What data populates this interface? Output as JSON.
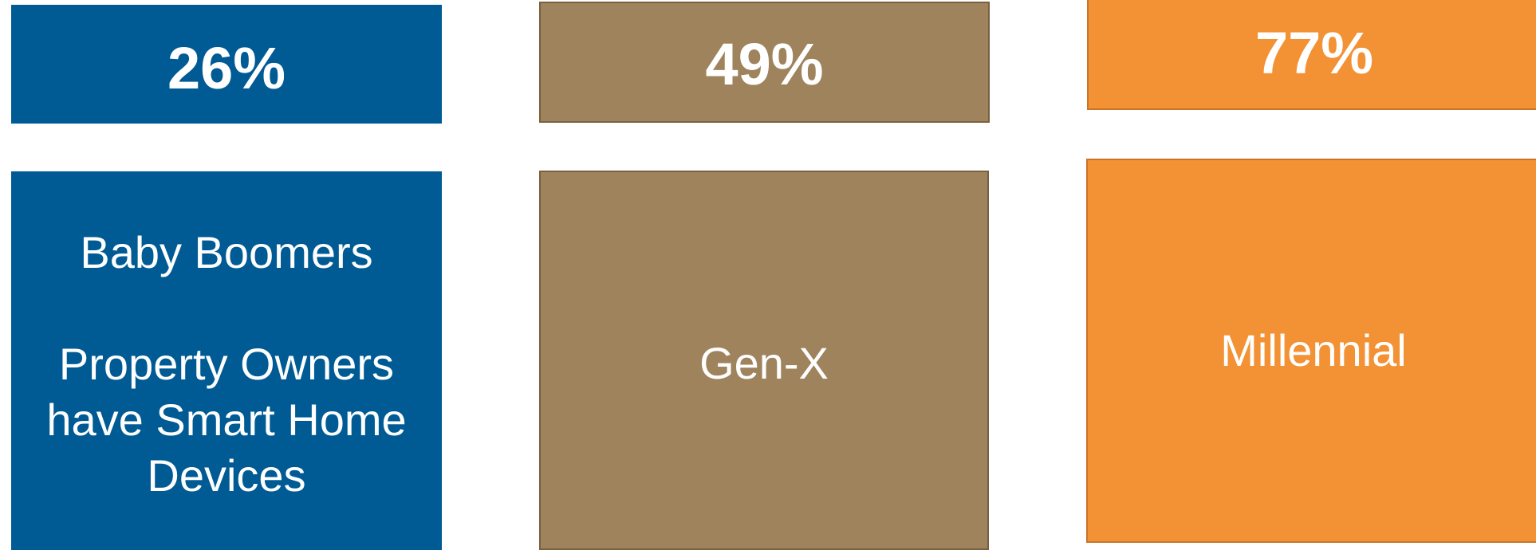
{
  "colors": {
    "boomers": "#005a94",
    "genx": "#9e835d",
    "millennial": "#f39234"
  },
  "groups": [
    {
      "percent": "26%",
      "label": "Baby Boomers\n\nProperty Owners\nhave Smart Home\nDevices"
    },
    {
      "percent": "49%",
      "label": "Gen-X"
    },
    {
      "percent": "77%",
      "label": "Millennial"
    }
  ]
}
